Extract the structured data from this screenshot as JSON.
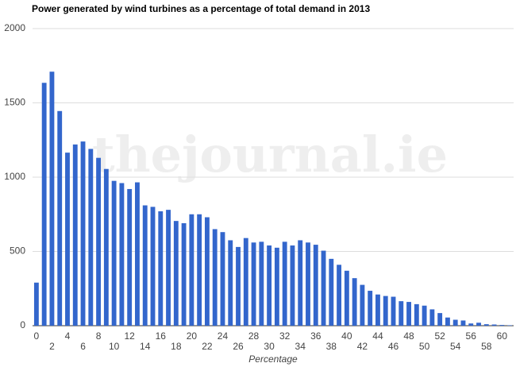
{
  "chart_data": {
    "type": "bar",
    "title": "Power generated by wind turbines as a percentage of total demand in 2013",
    "x_axis_label": "Percentage",
    "watermark": "thejournal.ie",
    "color": "#3366cc",
    "grid": true,
    "categories": [
      "0",
      null,
      "2",
      null,
      "4",
      null,
      "6",
      null,
      "8",
      null,
      "10",
      null,
      "12",
      null,
      "14",
      null,
      "16",
      null,
      "18",
      null,
      "20",
      null,
      "22",
      null,
      "24",
      null,
      "26",
      null,
      "28",
      null,
      "30",
      null,
      "32",
      null,
      "34",
      null,
      "36",
      null,
      "38",
      null,
      "40",
      null,
      "42",
      null,
      "44",
      null,
      "46",
      null,
      "48",
      null,
      "50",
      null,
      "52",
      null,
      "54",
      null,
      "56",
      null,
      "58",
      null,
      "60",
      null
    ],
    "values": [
      290,
      1635,
      1710,
      1445,
      1165,
      1220,
      1240,
      1190,
      1130,
      1055,
      975,
      960,
      920,
      965,
      810,
      800,
      770,
      780,
      705,
      690,
      750,
      750,
      730,
      650,
      630,
      575,
      530,
      590,
      560,
      565,
      540,
      525,
      565,
      540,
      575,
      560,
      545,
      505,
      450,
      410,
      370,
      320,
      275,
      235,
      210,
      200,
      195,
      165,
      160,
      145,
      135,
      110,
      85,
      55,
      40,
      35,
      15,
      20,
      10,
      8,
      5,
      3
    ],
    "ylim": [
      0,
      2000
    ],
    "yticks": [
      0,
      500,
      1000,
      1500,
      2000
    ]
  }
}
